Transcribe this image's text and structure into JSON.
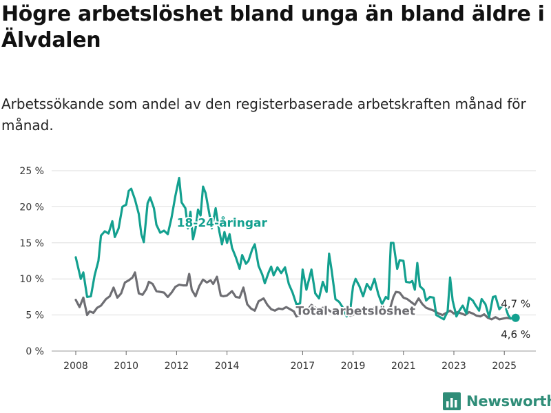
{
  "header": {
    "title": "Högre arbetslöshet bland unga än bland äldre i Älvdalen",
    "subtitle": "Arbetssökande som andel av den registerbaserade arbetskraften månad för månad."
  },
  "brand": {
    "name": "Newsworthy",
    "icon": "bar-chart-logo-icon",
    "color": "#2f8d78"
  },
  "chart_data": {
    "type": "line",
    "title": "Högre arbetslöshet bland unga än bland äldre i Älvdalen",
    "subtitle": "Arbetssökande som andel av den registerbaserade arbetskraften månad för månad.",
    "xlabel": "",
    "ylabel": "",
    "ylim": [
      0,
      25
    ],
    "y_ticks": [
      0,
      5,
      10,
      15,
      20,
      25
    ],
    "y_tick_labels": [
      "0 %",
      "5 %",
      "10 %",
      "15 %",
      "20 %",
      "25 %"
    ],
    "x_ticks": [
      2008,
      2010,
      2012,
      2014,
      2017,
      2019,
      2021,
      2023,
      2025
    ],
    "x_tick_labels": [
      "2008",
      "2010",
      "2012",
      "2014",
      "2017",
      "2019",
      "2021",
      "2023",
      "2025"
    ],
    "grid": true,
    "legend": "inline labels",
    "series": [
      {
        "name": "18-24-åringar",
        "color": "#13a08f",
        "points": [
          [
            2008.0,
            13.0
          ],
          [
            2008.2,
            10.0
          ],
          [
            2008.3,
            10.9
          ],
          [
            2008.45,
            7.5
          ],
          [
            2008.6,
            7.6
          ],
          [
            2008.75,
            10.5
          ],
          [
            2008.9,
            12.5
          ],
          [
            2009.0,
            16.0
          ],
          [
            2009.15,
            16.6
          ],
          [
            2009.3,
            16.3
          ],
          [
            2009.45,
            18.0
          ],
          [
            2009.55,
            15.8
          ],
          [
            2009.7,
            17.0
          ],
          [
            2009.85,
            20.0
          ],
          [
            2010.0,
            20.3
          ],
          [
            2010.1,
            22.2
          ],
          [
            2010.2,
            22.5
          ],
          [
            2010.35,
            21.0
          ],
          [
            2010.5,
            19.0
          ],
          [
            2010.6,
            16.2
          ],
          [
            2010.7,
            15.1
          ],
          [
            2010.85,
            20.5
          ],
          [
            2010.95,
            21.3
          ],
          [
            2011.1,
            19.8
          ],
          [
            2011.2,
            17.5
          ],
          [
            2011.35,
            16.4
          ],
          [
            2011.5,
            16.7
          ],
          [
            2011.65,
            16.2
          ],
          [
            2011.8,
            18.5
          ],
          [
            2011.95,
            21.5
          ],
          [
            2012.1,
            24.0
          ],
          [
            2012.2,
            20.6
          ],
          [
            2012.35,
            19.8
          ],
          [
            2012.45,
            17.0
          ],
          [
            2012.55,
            19.3
          ],
          [
            2012.65,
            15.5
          ],
          [
            2012.75,
            17.0
          ],
          [
            2012.85,
            19.6
          ],
          [
            2012.95,
            18.8
          ],
          [
            2013.05,
            22.8
          ],
          [
            2013.15,
            21.9
          ],
          [
            2013.3,
            19.0
          ],
          [
            2013.4,
            17.0
          ],
          [
            2013.55,
            19.8
          ],
          [
            2013.7,
            16.5
          ],
          [
            2013.8,
            14.8
          ],
          [
            2013.9,
            16.5
          ],
          [
            2014.0,
            15.0
          ],
          [
            2014.1,
            16.2
          ],
          [
            2014.2,
            14.3
          ],
          [
            2014.35,
            13.0
          ],
          [
            2014.5,
            11.4
          ],
          [
            2014.6,
            13.3
          ],
          [
            2014.75,
            12.1
          ],
          [
            2014.85,
            12.5
          ],
          [
            2015.0,
            14.1
          ],
          [
            2015.1,
            14.8
          ],
          [
            2015.25,
            11.8
          ],
          [
            2015.4,
            10.6
          ],
          [
            2015.5,
            9.4
          ],
          [
            2015.65,
            10.9
          ],
          [
            2015.75,
            11.7
          ],
          [
            2015.85,
            10.5
          ],
          [
            2016.0,
            11.6
          ],
          [
            2016.15,
            10.8
          ],
          [
            2016.3,
            11.6
          ],
          [
            2016.45,
            9.3
          ],
          [
            2016.6,
            8.1
          ],
          [
            2016.75,
            6.5
          ],
          [
            2016.9,
            6.6
          ],
          [
            2017.0,
            11.3
          ],
          [
            2017.15,
            8.5
          ],
          [
            2017.35,
            11.3
          ],
          [
            2017.5,
            8.0
          ],
          [
            2017.65,
            7.3
          ],
          [
            2017.8,
            9.6
          ],
          [
            2017.95,
            8.2
          ],
          [
            2018.05,
            13.5
          ],
          [
            2018.15,
            11.2
          ],
          [
            2018.3,
            7.2
          ],
          [
            2018.45,
            6.8
          ],
          [
            2018.6,
            6.0
          ],
          [
            2018.75,
            4.8
          ],
          [
            2018.9,
            6.0
          ],
          [
            2019.0,
            9.0
          ],
          [
            2019.1,
            10.0
          ],
          [
            2019.25,
            9.0
          ],
          [
            2019.4,
            7.6
          ],
          [
            2019.55,
            9.3
          ],
          [
            2019.7,
            8.5
          ],
          [
            2019.85,
            10.0
          ],
          [
            2020.0,
            7.9
          ],
          [
            2020.15,
            6.5
          ],
          [
            2020.3,
            7.5
          ],
          [
            2020.4,
            7.2
          ],
          [
            2020.5,
            15.0
          ],
          [
            2020.6,
            15.0
          ],
          [
            2020.75,
            11.4
          ],
          [
            2020.85,
            12.6
          ],
          [
            2021.0,
            12.5
          ],
          [
            2021.1,
            9.6
          ],
          [
            2021.25,
            9.5
          ],
          [
            2021.35,
            9.7
          ],
          [
            2021.45,
            8.5
          ],
          [
            2021.55,
            12.2
          ],
          [
            2021.65,
            9.0
          ],
          [
            2021.8,
            8.5
          ],
          [
            2021.9,
            7.0
          ],
          [
            2022.05,
            7.5
          ],
          [
            2022.2,
            7.4
          ],
          [
            2022.3,
            5.0
          ],
          [
            2022.5,
            4.6
          ],
          [
            2022.6,
            4.4
          ],
          [
            2022.75,
            5.5
          ],
          [
            2022.85,
            10.2
          ],
          [
            2022.95,
            7.0
          ],
          [
            2023.1,
            4.8
          ],
          [
            2023.2,
            5.5
          ],
          [
            2023.35,
            6.3
          ],
          [
            2023.5,
            5.2
          ],
          [
            2023.6,
            7.4
          ],
          [
            2023.75,
            7.0
          ],
          [
            2023.85,
            6.4
          ],
          [
            2024.0,
            5.6
          ],
          [
            2024.1,
            7.2
          ],
          [
            2024.25,
            6.5
          ],
          [
            2024.4,
            4.7
          ],
          [
            2024.55,
            7.5
          ],
          [
            2024.65,
            7.6
          ],
          [
            2024.8,
            5.8
          ],
          [
            2025.0,
            6.6
          ],
          [
            2025.15,
            5.0
          ],
          [
            2025.25,
            4.5
          ],
          [
            2025.45,
            4.7
          ]
        ]
      },
      {
        "name": "Total arbetslöshet",
        "color": "#6e6e73",
        "points": [
          [
            2008.0,
            7.1
          ],
          [
            2008.15,
            6.1
          ],
          [
            2008.3,
            7.4
          ],
          [
            2008.45,
            5.0
          ],
          [
            2008.55,
            5.5
          ],
          [
            2008.7,
            5.3
          ],
          [
            2008.85,
            6.0
          ],
          [
            2009.0,
            6.3
          ],
          [
            2009.2,
            7.2
          ],
          [
            2009.35,
            7.6
          ],
          [
            2009.5,
            8.8
          ],
          [
            2009.65,
            7.4
          ],
          [
            2009.8,
            8.0
          ],
          [
            2009.95,
            9.5
          ],
          [
            2010.1,
            9.8
          ],
          [
            2010.25,
            10.2
          ],
          [
            2010.35,
            10.9
          ],
          [
            2010.5,
            8.0
          ],
          [
            2010.65,
            7.8
          ],
          [
            2010.8,
            8.6
          ],
          [
            2010.9,
            9.6
          ],
          [
            2011.05,
            9.3
          ],
          [
            2011.2,
            8.3
          ],
          [
            2011.35,
            8.2
          ],
          [
            2011.5,
            8.1
          ],
          [
            2011.65,
            7.5
          ],
          [
            2011.8,
            8.1
          ],
          [
            2011.95,
            8.9
          ],
          [
            2012.1,
            9.2
          ],
          [
            2012.25,
            9.1
          ],
          [
            2012.4,
            9.1
          ],
          [
            2012.5,
            10.7
          ],
          [
            2012.6,
            8.5
          ],
          [
            2012.75,
            7.6
          ],
          [
            2012.9,
            9.0
          ],
          [
            2013.05,
            9.9
          ],
          [
            2013.2,
            9.5
          ],
          [
            2013.35,
            9.8
          ],
          [
            2013.45,
            9.3
          ],
          [
            2013.6,
            10.3
          ],
          [
            2013.75,
            7.7
          ],
          [
            2013.85,
            7.6
          ],
          [
            2014.0,
            7.7
          ],
          [
            2014.2,
            8.3
          ],
          [
            2014.35,
            7.5
          ],
          [
            2014.5,
            7.4
          ],
          [
            2014.65,
            8.8
          ],
          [
            2014.8,
            6.5
          ],
          [
            2014.95,
            5.9
          ],
          [
            2015.1,
            5.6
          ],
          [
            2015.25,
            6.9
          ],
          [
            2015.45,
            7.3
          ],
          [
            2015.6,
            6.4
          ],
          [
            2015.75,
            5.8
          ],
          [
            2015.9,
            5.6
          ],
          [
            2016.05,
            5.9
          ],
          [
            2016.2,
            5.8
          ],
          [
            2016.35,
            6.1
          ],
          [
            2016.5,
            5.8
          ],
          [
            2016.65,
            5.5
          ],
          [
            2016.75,
            4.8
          ],
          [
            2016.9,
            5.0
          ],
          [
            2017.05,
            5.3
          ],
          [
            2017.2,
            5.7
          ],
          [
            2017.35,
            6.4
          ],
          [
            2017.5,
            6.0
          ],
          [
            2017.65,
            5.8
          ],
          [
            2017.8,
            6.0
          ],
          [
            2017.95,
            5.9
          ],
          [
            2018.1,
            5.5
          ],
          [
            2018.3,
            5.0
          ],
          [
            2018.5,
            5.8
          ],
          [
            2018.7,
            5.2
          ],
          [
            2018.9,
            4.9
          ],
          [
            2019.1,
            5.2
          ],
          [
            2019.3,
            5.4
          ],
          [
            2019.5,
            5.0
          ],
          [
            2019.7,
            5.8
          ],
          [
            2019.9,
            6.0
          ],
          [
            2020.1,
            5.5
          ],
          [
            2020.3,
            5.6
          ],
          [
            2020.45,
            5.7
          ],
          [
            2020.6,
            7.5
          ],
          [
            2020.7,
            8.2
          ],
          [
            2020.85,
            8.1
          ],
          [
            2021.0,
            7.4
          ],
          [
            2021.15,
            7.2
          ],
          [
            2021.3,
            6.8
          ],
          [
            2021.45,
            6.4
          ],
          [
            2021.6,
            7.3
          ],
          [
            2021.75,
            6.5
          ],
          [
            2021.9,
            6.0
          ],
          [
            2022.05,
            5.8
          ],
          [
            2022.2,
            5.6
          ],
          [
            2022.4,
            5.2
          ],
          [
            2022.55,
            5.0
          ],
          [
            2022.7,
            5.3
          ],
          [
            2022.85,
            5.6
          ],
          [
            2023.0,
            5.2
          ],
          [
            2023.15,
            5.4
          ],
          [
            2023.3,
            5.2
          ],
          [
            2023.45,
            5.0
          ],
          [
            2023.6,
            5.4
          ],
          [
            2023.75,
            5.2
          ],
          [
            2023.9,
            4.9
          ],
          [
            2024.05,
            4.8
          ],
          [
            2024.2,
            5.1
          ],
          [
            2024.35,
            4.6
          ],
          [
            2024.5,
            4.4
          ],
          [
            2024.65,
            4.7
          ],
          [
            2024.8,
            4.4
          ],
          [
            2024.95,
            4.5
          ],
          [
            2025.1,
            4.6
          ],
          [
            2025.25,
            4.5
          ],
          [
            2025.4,
            4.6
          ],
          [
            2025.45,
            4.6
          ]
        ]
      }
    ],
    "series_labels": [
      {
        "text": "18-24-åringar",
        "color": "#13a08f",
        "x": 2013.8,
        "y": 17.2
      },
      {
        "text": "Total arbetslöshet",
        "color": "#6e6e73",
        "x": 2019.1,
        "y": 5.0
      }
    ],
    "annotations": [
      {
        "text": "4,7 %",
        "series": "18-24-åringar",
        "x": 2025.45,
        "y": 4.7,
        "placement": "above"
      },
      {
        "text": "4,6 %",
        "series": "Total arbetslöshet",
        "x": 2025.45,
        "y": 4.6,
        "placement": "below"
      }
    ]
  }
}
